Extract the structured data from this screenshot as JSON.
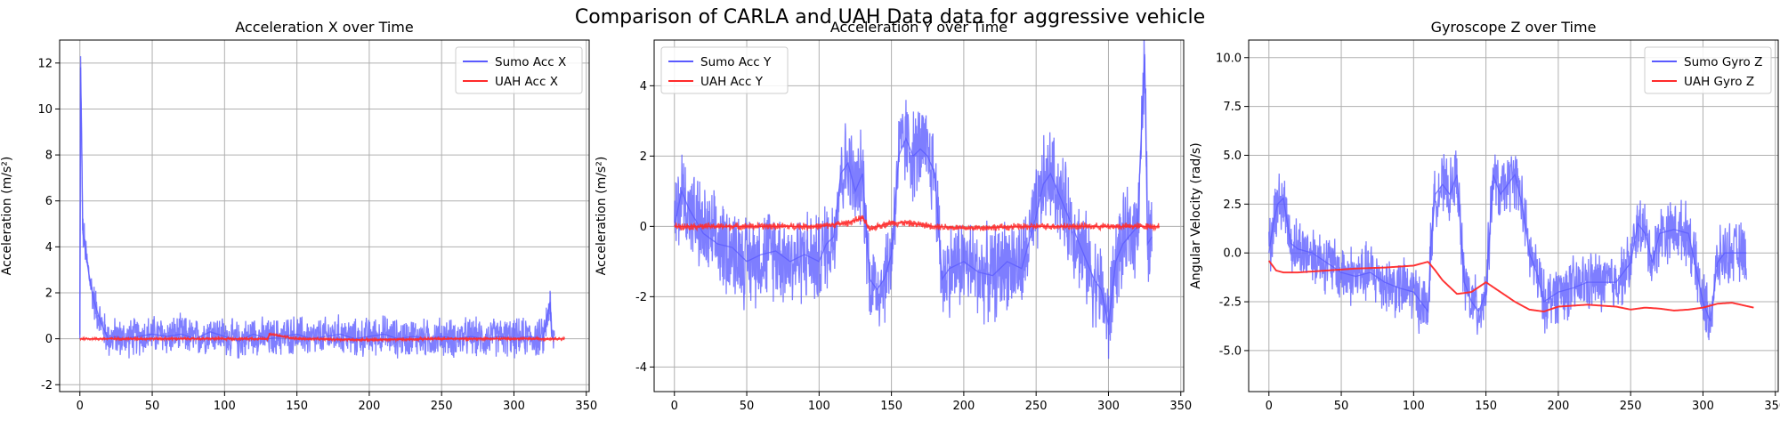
{
  "figure": {
    "title": "Comparison of CARLA and UAH Data data for aggressive vehicle"
  },
  "chart_data": [
    {
      "type": "line",
      "title": "Acceleration X over Time",
      "xlabel": "",
      "ylabel": "Acceleration (m/s²)",
      "xlim": [
        -14,
        352
      ],
      "ylim": [
        -2.3,
        13.0
      ],
      "xticks": [
        0,
        50,
        100,
        150,
        200,
        250,
        300,
        350
      ],
      "yticks": [
        -2,
        0,
        2,
        4,
        6,
        8,
        10,
        12
      ],
      "grid": true,
      "legend_position": "top-right",
      "series": [
        {
          "name": "Sumo Acc X",
          "color": "#5a5aff",
          "x": [
            0,
            0.5,
            1,
            2,
            3,
            4,
            5,
            6,
            8,
            10,
            12,
            14,
            16,
            18,
            20,
            25,
            30,
            40,
            50,
            60,
            70,
            80,
            90,
            100,
            110,
            120,
            130,
            140,
            150,
            160,
            170,
            180,
            190,
            200,
            210,
            220,
            230,
            240,
            250,
            260,
            270,
            280,
            290,
            300,
            310,
            320,
            325,
            326,
            328
          ],
          "y": [
            0,
            12.3,
            9.5,
            4.6,
            4.3,
            3.7,
            3.3,
            2.9,
            2.2,
            1.6,
            1.2,
            0.8,
            0.5,
            0.2,
            0.0,
            0.1,
            0.0,
            0.1,
            0.2,
            0.1,
            0.2,
            0.0,
            0.3,
            0.1,
            -0.1,
            0.2,
            0.0,
            0.1,
            0.2,
            0.0,
            0.1,
            0.2,
            0.0,
            0.1,
            0.2,
            0.0,
            0.1,
            0.0,
            0.1,
            0.0,
            0.1,
            0.0,
            0.1,
            0.0,
            0.1,
            0.0,
            1.6,
            0.1,
            0.0
          ],
          "noise_amplitude": 0.7
        },
        {
          "name": "UAH Acc X",
          "color": "#ff2b2b",
          "x": [
            0,
            50,
            100,
            130,
            131,
            150,
            200,
            250,
            300,
            335
          ],
          "y": [
            0.0,
            0.0,
            0.0,
            0.0,
            0.2,
            0.0,
            -0.05,
            0.0,
            0.0,
            0.0
          ],
          "noise_amplitude": 0.05
        }
      ]
    },
    {
      "type": "line",
      "title": "Acceleration Y over Time",
      "xlabel": "",
      "ylabel": "Acceleration (m/s²)",
      "xlim": [
        -14,
        352
      ],
      "ylim": [
        -4.7,
        5.3
      ],
      "xticks": [
        0,
        50,
        100,
        150,
        200,
        250,
        300,
        350
      ],
      "yticks": [
        -4,
        -2,
        0,
        2,
        4
      ],
      "grid": true,
      "legend_position": "top-left",
      "series": [
        {
          "name": "Sumo Acc Y",
          "color": "#5a5aff",
          "x": [
            0,
            5,
            10,
            20,
            30,
            40,
            50,
            60,
            70,
            80,
            90,
            100,
            105,
            110,
            115,
            120,
            125,
            130,
            135,
            140,
            145,
            150,
            155,
            160,
            165,
            170,
            175,
            180,
            185,
            190,
            200,
            210,
            220,
            230,
            240,
            250,
            255,
            260,
            265,
            270,
            280,
            290,
            295,
            300,
            305,
            310,
            320,
            325,
            327,
            330
          ],
          "y": [
            0.0,
            1.0,
            0.5,
            -0.2,
            -0.5,
            -0.6,
            -1.0,
            -0.8,
            -0.7,
            -1.0,
            -0.8,
            -1.0,
            -0.5,
            -0.3,
            1.5,
            1.8,
            1.0,
            1.5,
            -1.5,
            -1.8,
            -1.5,
            -0.8,
            2.0,
            2.5,
            2.0,
            2.2,
            2.0,
            1.5,
            -1.5,
            -1.2,
            -1.0,
            -1.3,
            -1.4,
            -1.0,
            -1.2,
            0.3,
            1.2,
            1.5,
            1.0,
            0.5,
            -0.5,
            -1.5,
            -1.8,
            -2.8,
            -1.0,
            -0.5,
            0.0,
            4.9,
            -0.5,
            -0.3
          ],
          "noise_amplitude": 1.1
        },
        {
          "name": "UAH Acc Y",
          "color": "#ff2b2b",
          "x": [
            0,
            50,
            100,
            110,
            120,
            130,
            135,
            140,
            150,
            160,
            180,
            200,
            250,
            300,
            335
          ],
          "y": [
            0.0,
            0.0,
            0.0,
            0.05,
            0.1,
            0.25,
            -0.1,
            0.0,
            0.1,
            0.1,
            0.0,
            -0.05,
            0.0,
            0.0,
            0.0
          ],
          "noise_amplitude": 0.08
        }
      ]
    },
    {
      "type": "line",
      "title": "Gyroscope Z over Time",
      "xlabel": "",
      "ylabel": "Angular Velocity (rad/s)",
      "xlim": [
        -14,
        352
      ],
      "ylim": [
        -7.1,
        10.9
      ],
      "xticks": [
        0,
        50,
        100,
        150,
        200,
        250,
        300,
        350
      ],
      "yticks": [
        -5.0,
        -2.5,
        0.0,
        2.5,
        5.0,
        7.5,
        10.0
      ],
      "grid": true,
      "legend_position": "top-right",
      "series": [
        {
          "name": "Sumo Gyro Z",
          "color": "#5a5aff",
          "x": [
            0,
            3,
            6,
            10,
            15,
            20,
            30,
            40,
            50,
            60,
            70,
            80,
            90,
            100,
            105,
            110,
            112,
            115,
            120,
            125,
            130,
            135,
            140,
            145,
            150,
            155,
            160,
            165,
            170,
            175,
            180,
            185,
            190,
            200,
            210,
            220,
            230,
            240,
            250,
            255,
            260,
            265,
            270,
            280,
            290,
            300,
            305,
            310,
            315,
            320,
            330
          ],
          "y": [
            0.0,
            1.5,
            2.5,
            2.8,
            0.5,
            0.2,
            0.0,
            -0.5,
            -1.0,
            -1.2,
            -1.0,
            -1.5,
            -1.8,
            -2.0,
            -2.5,
            -3.0,
            0.5,
            3.0,
            3.5,
            3.0,
            4.0,
            -1.5,
            -2.5,
            -3.0,
            -2.0,
            4.0,
            3.0,
            3.5,
            4.0,
            2.5,
            0.0,
            -1.0,
            -2.5,
            -2.0,
            -1.8,
            -1.5,
            -1.5,
            -1.5,
            -0.5,
            1.5,
            1.0,
            -0.5,
            1.0,
            1.2,
            1.0,
            -2.5,
            -3.5,
            -0.5,
            0.0,
            0.0,
            0.0
          ],
          "noise_amplitude": 1.3
        },
        {
          "name": "UAH Gyro Z",
          "color": "#ff2b2b",
          "x": [
            0,
            5,
            10,
            20,
            40,
            60,
            80,
            100,
            110,
            115,
            120,
            130,
            140,
            150,
            160,
            170,
            180,
            190,
            200,
            210,
            220,
            230,
            240,
            250,
            260,
            270,
            280,
            290,
            300,
            310,
            320,
            335
          ],
          "y": [
            -0.4,
            -0.9,
            -1.0,
            -1.0,
            -0.9,
            -0.8,
            -0.75,
            -0.65,
            -0.45,
            -0.9,
            -1.4,
            -2.1,
            -2.0,
            -1.5,
            -2.0,
            -2.5,
            -2.9,
            -3.0,
            -2.75,
            -2.7,
            -2.65,
            -2.7,
            -2.75,
            -2.9,
            -2.8,
            -2.85,
            -2.95,
            -2.9,
            -2.8,
            -2.6,
            -2.55,
            -2.8
          ],
          "noise_amplitude": 0.0
        }
      ]
    }
  ]
}
